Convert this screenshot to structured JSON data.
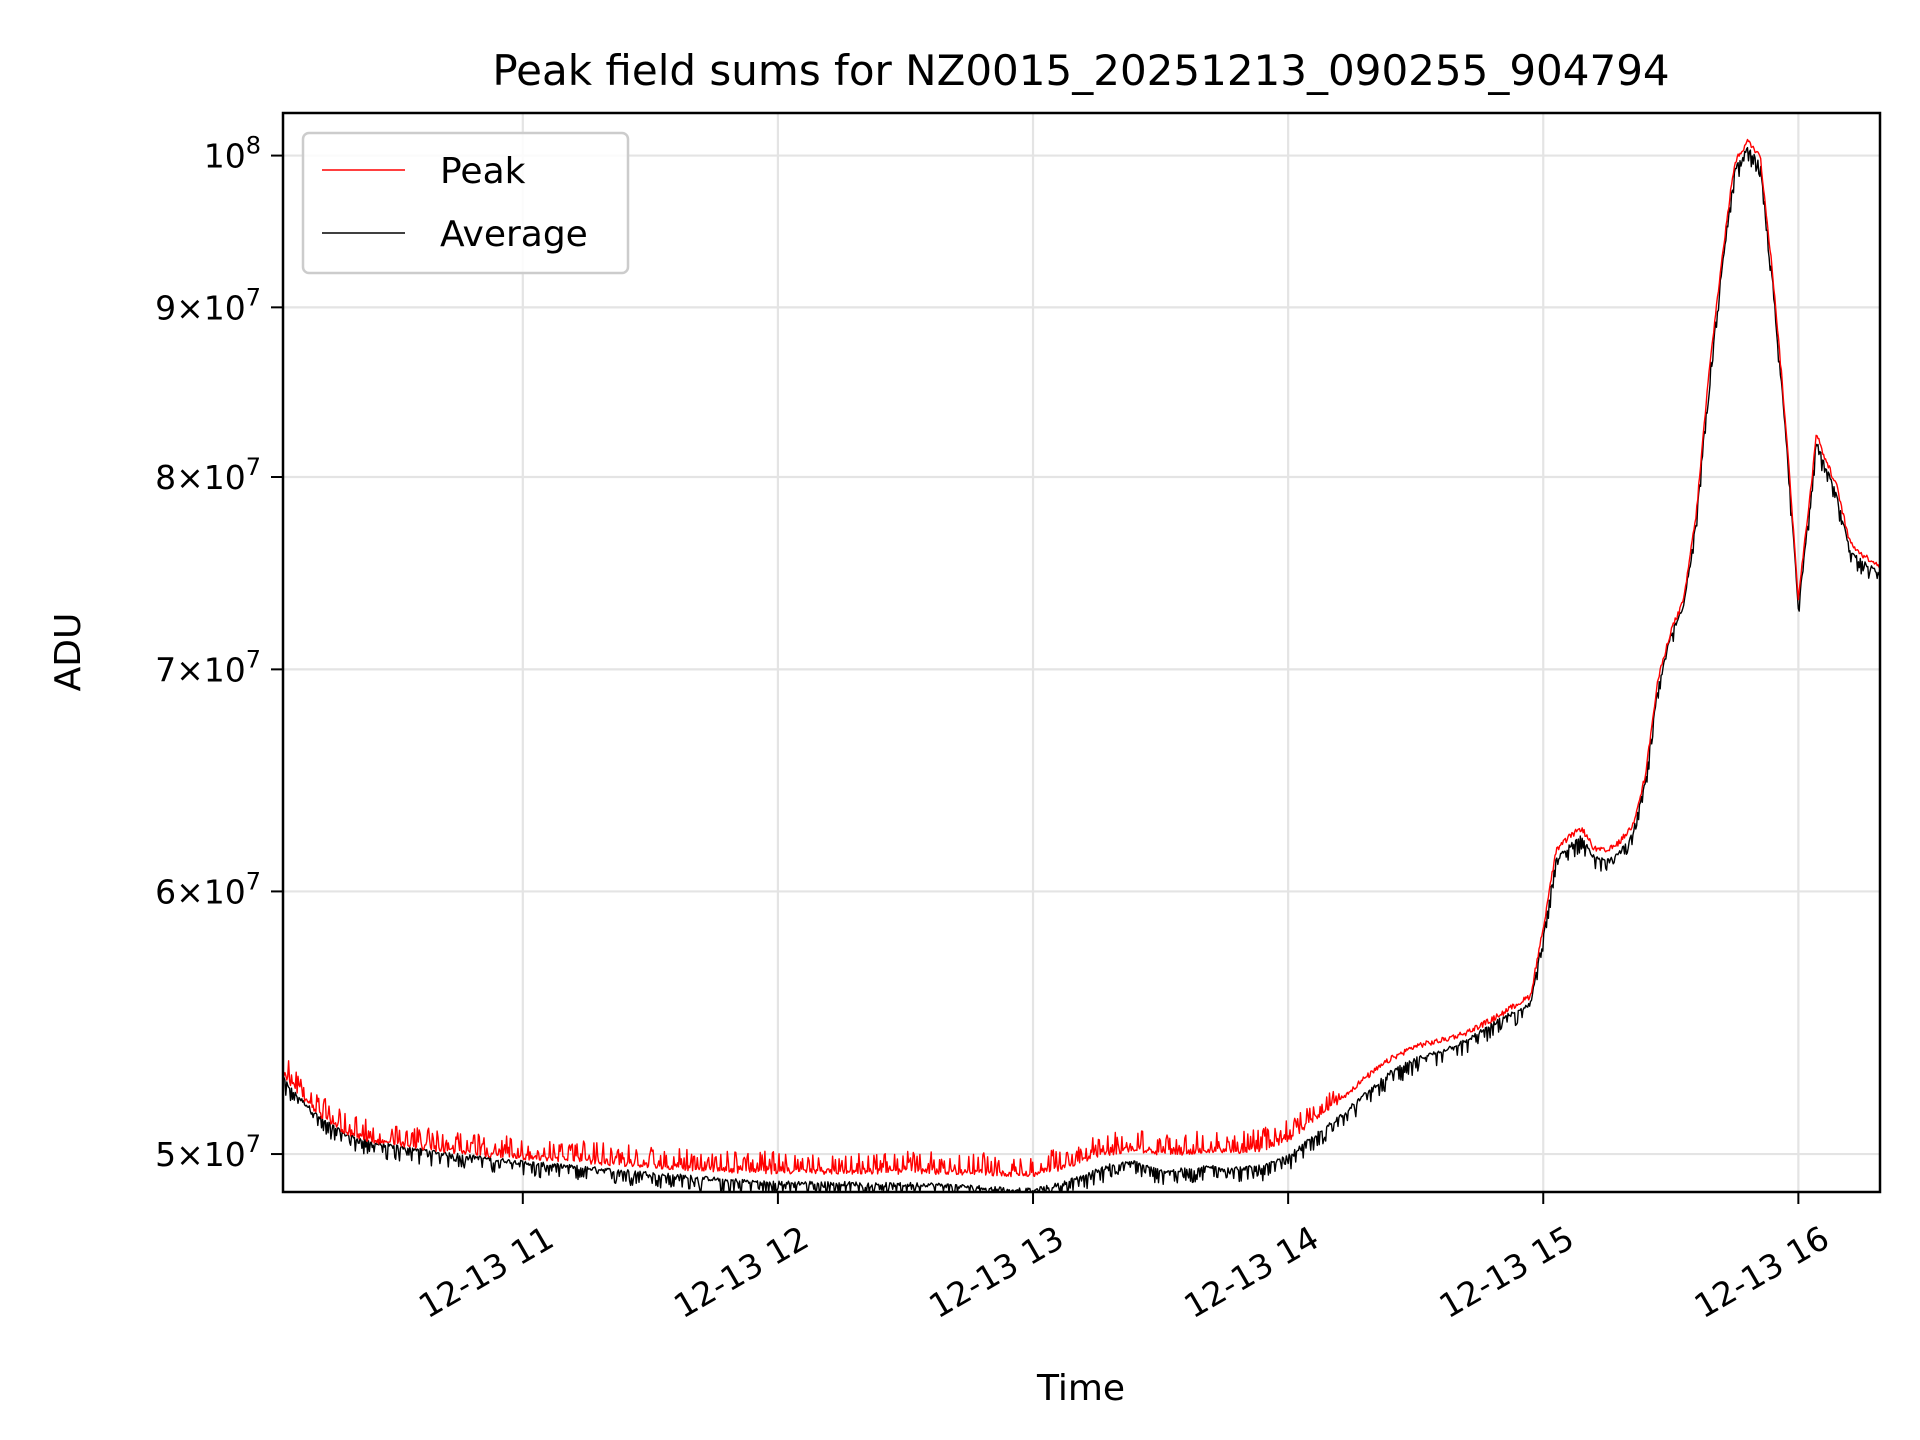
{
  "chart_data": {
    "type": "line",
    "title": "Peak field sums for NZ0015_20251213_090255_904794",
    "xlabel": "Time",
    "ylabel": "ADU",
    "yscale": "log",
    "ylim": [
      48700000,
      103000000
    ],
    "xlim_hours": [
      10.06,
      16.32
    ],
    "grid": true,
    "legend_position": "upper-left",
    "x_ticks": [
      {
        "value": 11,
        "label": "12-13 11"
      },
      {
        "value": 12,
        "label": "12-13 12"
      },
      {
        "value": 13,
        "label": "12-13 13"
      },
      {
        "value": 14,
        "label": "12-13 14"
      },
      {
        "value": 15,
        "label": "12-13 15"
      },
      {
        "value": 16,
        "label": "12-13 16"
      }
    ],
    "y_ticks": [
      {
        "value": 50000000,
        "mant": "5",
        "exp": "7"
      },
      {
        "value": 60000000,
        "mant": "6",
        "exp": "7"
      },
      {
        "value": 70000000,
        "mant": "7",
        "exp": "7"
      },
      {
        "value": 80000000,
        "mant": "8",
        "exp": "7"
      },
      {
        "value": 90000000,
        "mant": "9",
        "exp": "7"
      },
      {
        "value": 100000000,
        "mant": "",
        "exp": "8"
      }
    ],
    "series": [
      {
        "name": "Peak",
        "color": "#ff0000",
        "points": [
          [
            10.06,
            52900000
          ],
          [
            10.1,
            52400000
          ],
          [
            10.2,
            51400000
          ],
          [
            10.3,
            50800000
          ],
          [
            10.4,
            50500000
          ],
          [
            10.5,
            50350000
          ],
          [
            10.6,
            50250000
          ],
          [
            10.7,
            50150000
          ],
          [
            10.8,
            50050000
          ],
          [
            10.9,
            49950000
          ],
          [
            11.0,
            49900000
          ],
          [
            11.2,
            49800000
          ],
          [
            11.4,
            49650000
          ],
          [
            11.6,
            49550000
          ],
          [
            11.8,
            49450000
          ],
          [
            12.0,
            49400000
          ],
          [
            12.2,
            49400000
          ],
          [
            12.4,
            49400000
          ],
          [
            12.6,
            49400000
          ],
          [
            12.8,
            49350000
          ],
          [
            13.0,
            49300000
          ],
          [
            13.1,
            49500000
          ],
          [
            13.2,
            49800000
          ],
          [
            13.3,
            50050000
          ],
          [
            13.4,
            50200000
          ],
          [
            13.5,
            50000000
          ],
          [
            13.6,
            50050000
          ],
          [
            13.7,
            50150000
          ],
          [
            13.8,
            50100000
          ],
          [
            13.9,
            50200000
          ],
          [
            14.0,
            50500000
          ],
          [
            14.1,
            51200000
          ],
          [
            14.2,
            51900000
          ],
          [
            14.3,
            52700000
          ],
          [
            14.4,
            53400000
          ],
          [
            14.5,
            53900000
          ],
          [
            14.6,
            54100000
          ],
          [
            14.7,
            54400000
          ],
          [
            14.8,
            54900000
          ],
          [
            14.85,
            55200000
          ],
          [
            14.9,
            55500000
          ],
          [
            14.95,
            55800000
          ],
          [
            15.0,
            58500000
          ],
          [
            15.05,
            61700000
          ],
          [
            15.1,
            62300000
          ],
          [
            15.15,
            62700000
          ],
          [
            15.2,
            61800000
          ],
          [
            15.25,
            61700000
          ],
          [
            15.3,
            62100000
          ],
          [
            15.35,
            62800000
          ],
          [
            15.4,
            65000000
          ],
          [
            15.45,
            69500000
          ],
          [
            15.5,
            71900000
          ],
          [
            15.55,
            73400000
          ],
          [
            15.6,
            78000000
          ],
          [
            15.65,
            86000000
          ],
          [
            15.7,
            93000000
          ],
          [
            15.75,
            99500000
          ],
          [
            15.8,
            101000000
          ],
          [
            15.85,
            100000000
          ],
          [
            15.9,
            92000000
          ],
          [
            15.95,
            83000000
          ],
          [
            16.0,
            73500000
          ],
          [
            16.05,
            79500000
          ],
          [
            16.07,
            82500000
          ],
          [
            16.1,
            81200000
          ],
          [
            16.15,
            79500000
          ],
          [
            16.2,
            76500000
          ],
          [
            16.25,
            75800000
          ],
          [
            16.3,
            75400000
          ],
          [
            16.32,
            75200000
          ]
        ]
      },
      {
        "name": "Average",
        "color": "#000000",
        "points": [
          [
            10.06,
            52700000
          ],
          [
            10.1,
            52200000
          ],
          [
            10.2,
            51300000
          ],
          [
            10.3,
            50700000
          ],
          [
            10.4,
            50400000
          ],
          [
            10.5,
            50250000
          ],
          [
            10.6,
            50150000
          ],
          [
            10.7,
            50000000
          ],
          [
            10.8,
            49900000
          ],
          [
            10.9,
            49800000
          ],
          [
            11.0,
            49700000
          ],
          [
            11.2,
            49550000
          ],
          [
            11.4,
            49400000
          ],
          [
            11.6,
            49250000
          ],
          [
            11.8,
            49100000
          ],
          [
            12.0,
            49000000
          ],
          [
            12.2,
            49000000
          ],
          [
            12.4,
            48950000
          ],
          [
            12.6,
            48950000
          ],
          [
            12.8,
            48850000
          ],
          [
            13.0,
            48750000
          ],
          [
            13.1,
            48950000
          ],
          [
            13.2,
            49250000
          ],
          [
            13.3,
            49600000
          ],
          [
            13.4,
            49700000
          ],
          [
            13.5,
            49400000
          ],
          [
            13.6,
            49450000
          ],
          [
            13.7,
            49550000
          ],
          [
            13.8,
            49500000
          ],
          [
            13.9,
            49550000
          ],
          [
            14.0,
            49900000
          ],
          [
            14.1,
            50600000
          ],
          [
            14.2,
            51300000
          ],
          [
            14.3,
            52100000
          ],
          [
            14.4,
            52900000
          ],
          [
            14.5,
            53400000
          ],
          [
            14.6,
            53700000
          ],
          [
            14.7,
            54100000
          ],
          [
            14.8,
            54700000
          ],
          [
            14.85,
            55000000
          ],
          [
            14.9,
            55200000
          ],
          [
            14.95,
            55500000
          ],
          [
            15.0,
            58200000
          ],
          [
            15.05,
            61300000
          ],
          [
            15.1,
            61900000
          ],
          [
            15.15,
            62300000
          ],
          [
            15.2,
            61400000
          ],
          [
            15.25,
            61300000
          ],
          [
            15.3,
            61700000
          ],
          [
            15.35,
            62400000
          ],
          [
            15.4,
            64700000
          ],
          [
            15.45,
            69200000
          ],
          [
            15.5,
            71700000
          ],
          [
            15.55,
            73100000
          ],
          [
            15.6,
            77600000
          ],
          [
            15.65,
            85500000
          ],
          [
            15.7,
            92500000
          ],
          [
            15.75,
            99000000
          ],
          [
            15.8,
            100500000
          ],
          [
            15.85,
            99500000
          ],
          [
            15.9,
            91500000
          ],
          [
            15.95,
            82500000
          ],
          [
            16.0,
            73000000
          ],
          [
            16.05,
            79000000
          ],
          [
            16.07,
            82000000
          ],
          [
            16.1,
            80800000
          ],
          [
            16.15,
            79000000
          ],
          [
            16.2,
            76100000
          ],
          [
            16.25,
            75400000
          ],
          [
            16.3,
            75000000
          ],
          [
            16.32,
            74800000
          ]
        ]
      }
    ]
  }
}
